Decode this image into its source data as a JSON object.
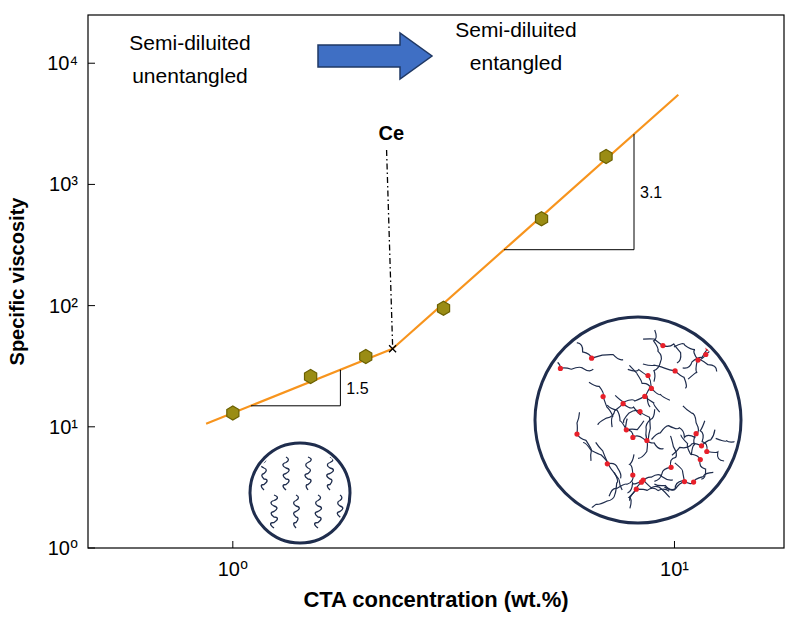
{
  "chart_data": {
    "type": "scatter",
    "x_label": "CTA concentration (wt.%)",
    "y_label": "Specific viscosity",
    "log": true,
    "grid": false,
    "xlim": [
      0.47,
      17.7
    ],
    "ylim": [
      1,
      25000
    ],
    "xticks": [
      {
        "value": 1,
        "label": "10⁰"
      },
      {
        "value": 10,
        "label": "10¹"
      }
    ],
    "yticks": [
      {
        "value": 1,
        "label": "10⁰"
      },
      {
        "value": 10,
        "label": "10¹"
      },
      {
        "value": 100,
        "label": "10²"
      },
      {
        "value": 1000,
        "label": "10³"
      },
      {
        "value": 10000,
        "label": "10⁴"
      }
    ],
    "series": [
      {
        "type": "scatter",
        "marker": "hexagon",
        "color": "#9a8c14",
        "x": [
          1,
          1.5,
          2,
          3,
          5,
          7
        ],
        "values": [
          13,
          26,
          38,
          95,
          520,
          1700
        ]
      },
      {
        "type": "line",
        "line_style": "solid",
        "color": "#f7941d",
        "x": [
          0.87,
          2.3
        ],
        "values": [
          10.6,
          44
        ]
      },
      {
        "type": "line",
        "line_style": "solid",
        "color": "#f7941d",
        "x": [
          2.3,
          10.2
        ],
        "values": [
          44,
          5500
        ]
      }
    ],
    "annotations": [
      {
        "text": "Semi-diluited unentangled"
      },
      {
        "text": "Semi-diluited entangled"
      },
      {
        "text": "Ce",
        "x": 2.3,
        "y": 44
      },
      {
        "text": "1.5"
      },
      {
        "text": "3.1"
      }
    ]
  }
}
